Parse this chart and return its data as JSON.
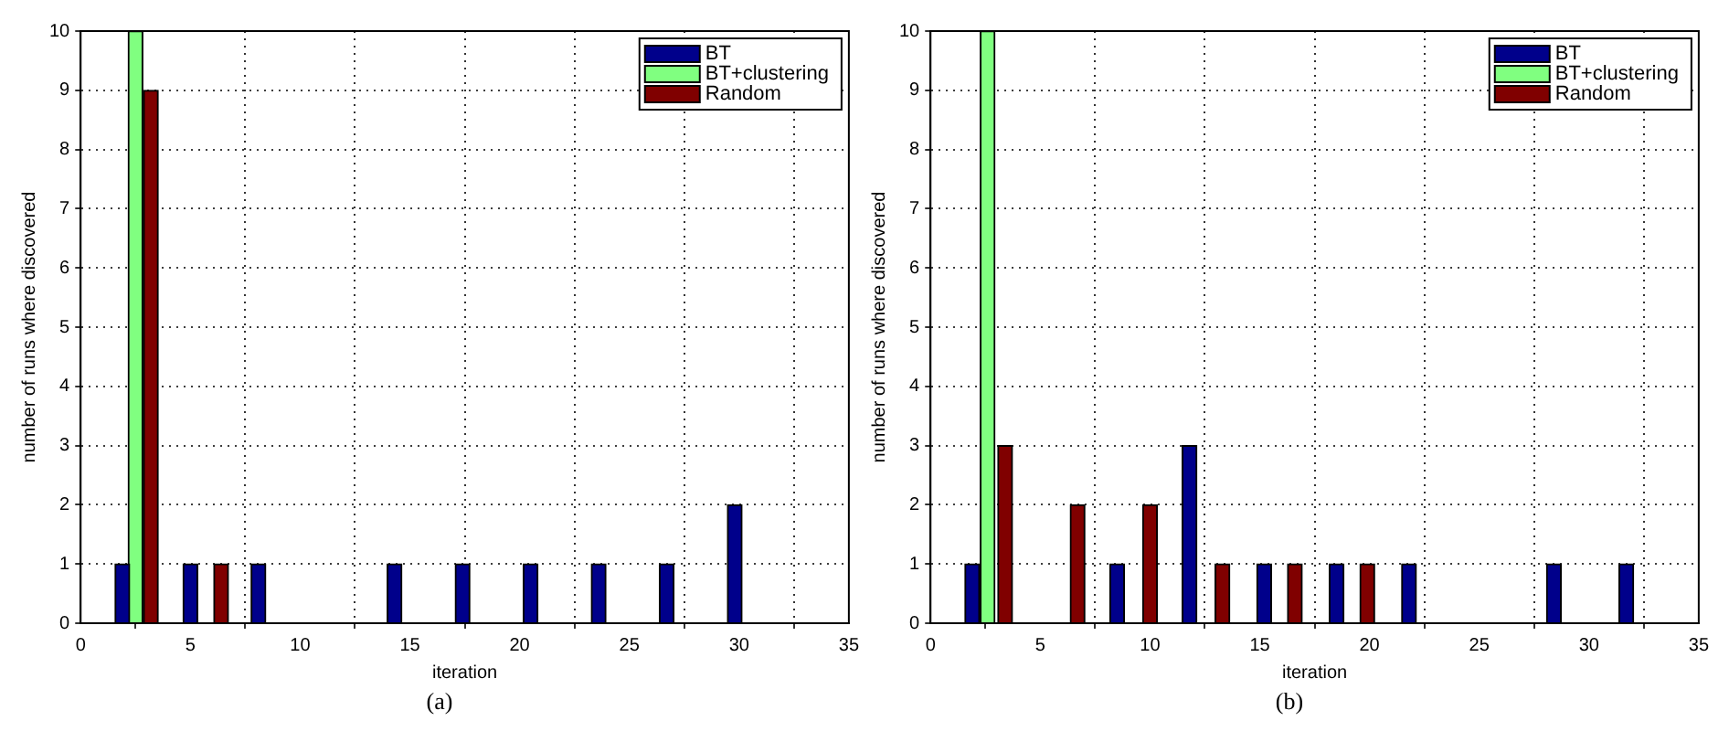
{
  "chart_data": [
    {
      "type": "bar",
      "xlabel": "iteration",
      "ylabel": "number of runs where discovered",
      "annotations": [
        "(a)"
      ],
      "xlim": [
        0,
        35
      ],
      "xticks": [
        0,
        5,
        10,
        15,
        20,
        25,
        30,
        35
      ],
      "ylim": [
        0,
        10
      ],
      "yticks": [
        0,
        1,
        2,
        3,
        4,
        5,
        6,
        7,
        8,
        9,
        10
      ],
      "grid": true,
      "legend": "top right",
      "series": [
        {
          "name": "BT",
          "color": "#00008b",
          "x": [
            1.9,
            5.0,
            8.1,
            14.3,
            17.4,
            20.5,
            23.6,
            26.7,
            29.8
          ],
          "values": [
            1,
            1,
            1,
            1,
            1,
            1,
            1,
            1,
            2
          ]
        },
        {
          "name": "BT+clustering",
          "color": "#80ff80",
          "x": [
            2.5
          ],
          "values": [
            10
          ]
        },
        {
          "name": "Random",
          "color": "#800000",
          "x": [
            3.2,
            6.4
          ],
          "values": [
            9,
            1
          ]
        }
      ]
    },
    {
      "type": "bar",
      "xlabel": "iteration",
      "ylabel": "number of runs where discovered",
      "annotations": [
        "(b)"
      ],
      "xlim": [
        0,
        35
      ],
      "xticks": [
        0,
        5,
        10,
        15,
        20,
        25,
        30,
        35
      ],
      "ylim": [
        0,
        10
      ],
      "yticks": [
        0,
        1,
        2,
        3,
        4,
        5,
        6,
        7,
        8,
        9,
        10
      ],
      "grid": true,
      "legend": "top right",
      "series": [
        {
          "name": "BT",
          "color": "#00008b",
          "x": [
            1.9,
            8.5,
            11.8,
            15.2,
            18.5,
            21.8,
            28.4,
            31.7
          ],
          "values": [
            1,
            1,
            3,
            1,
            1,
            1,
            1,
            1
          ]
        },
        {
          "name": "BT+clustering",
          "color": "#80ff80",
          "x": [
            2.6
          ],
          "values": [
            10
          ]
        },
        {
          "name": "Random",
          "color": "#800000",
          "x": [
            3.4,
            6.7,
            10.0,
            13.3,
            16.6,
            19.9
          ],
          "values": [
            3,
            2,
            2,
            1,
            1,
            1
          ]
        }
      ]
    }
  ]
}
